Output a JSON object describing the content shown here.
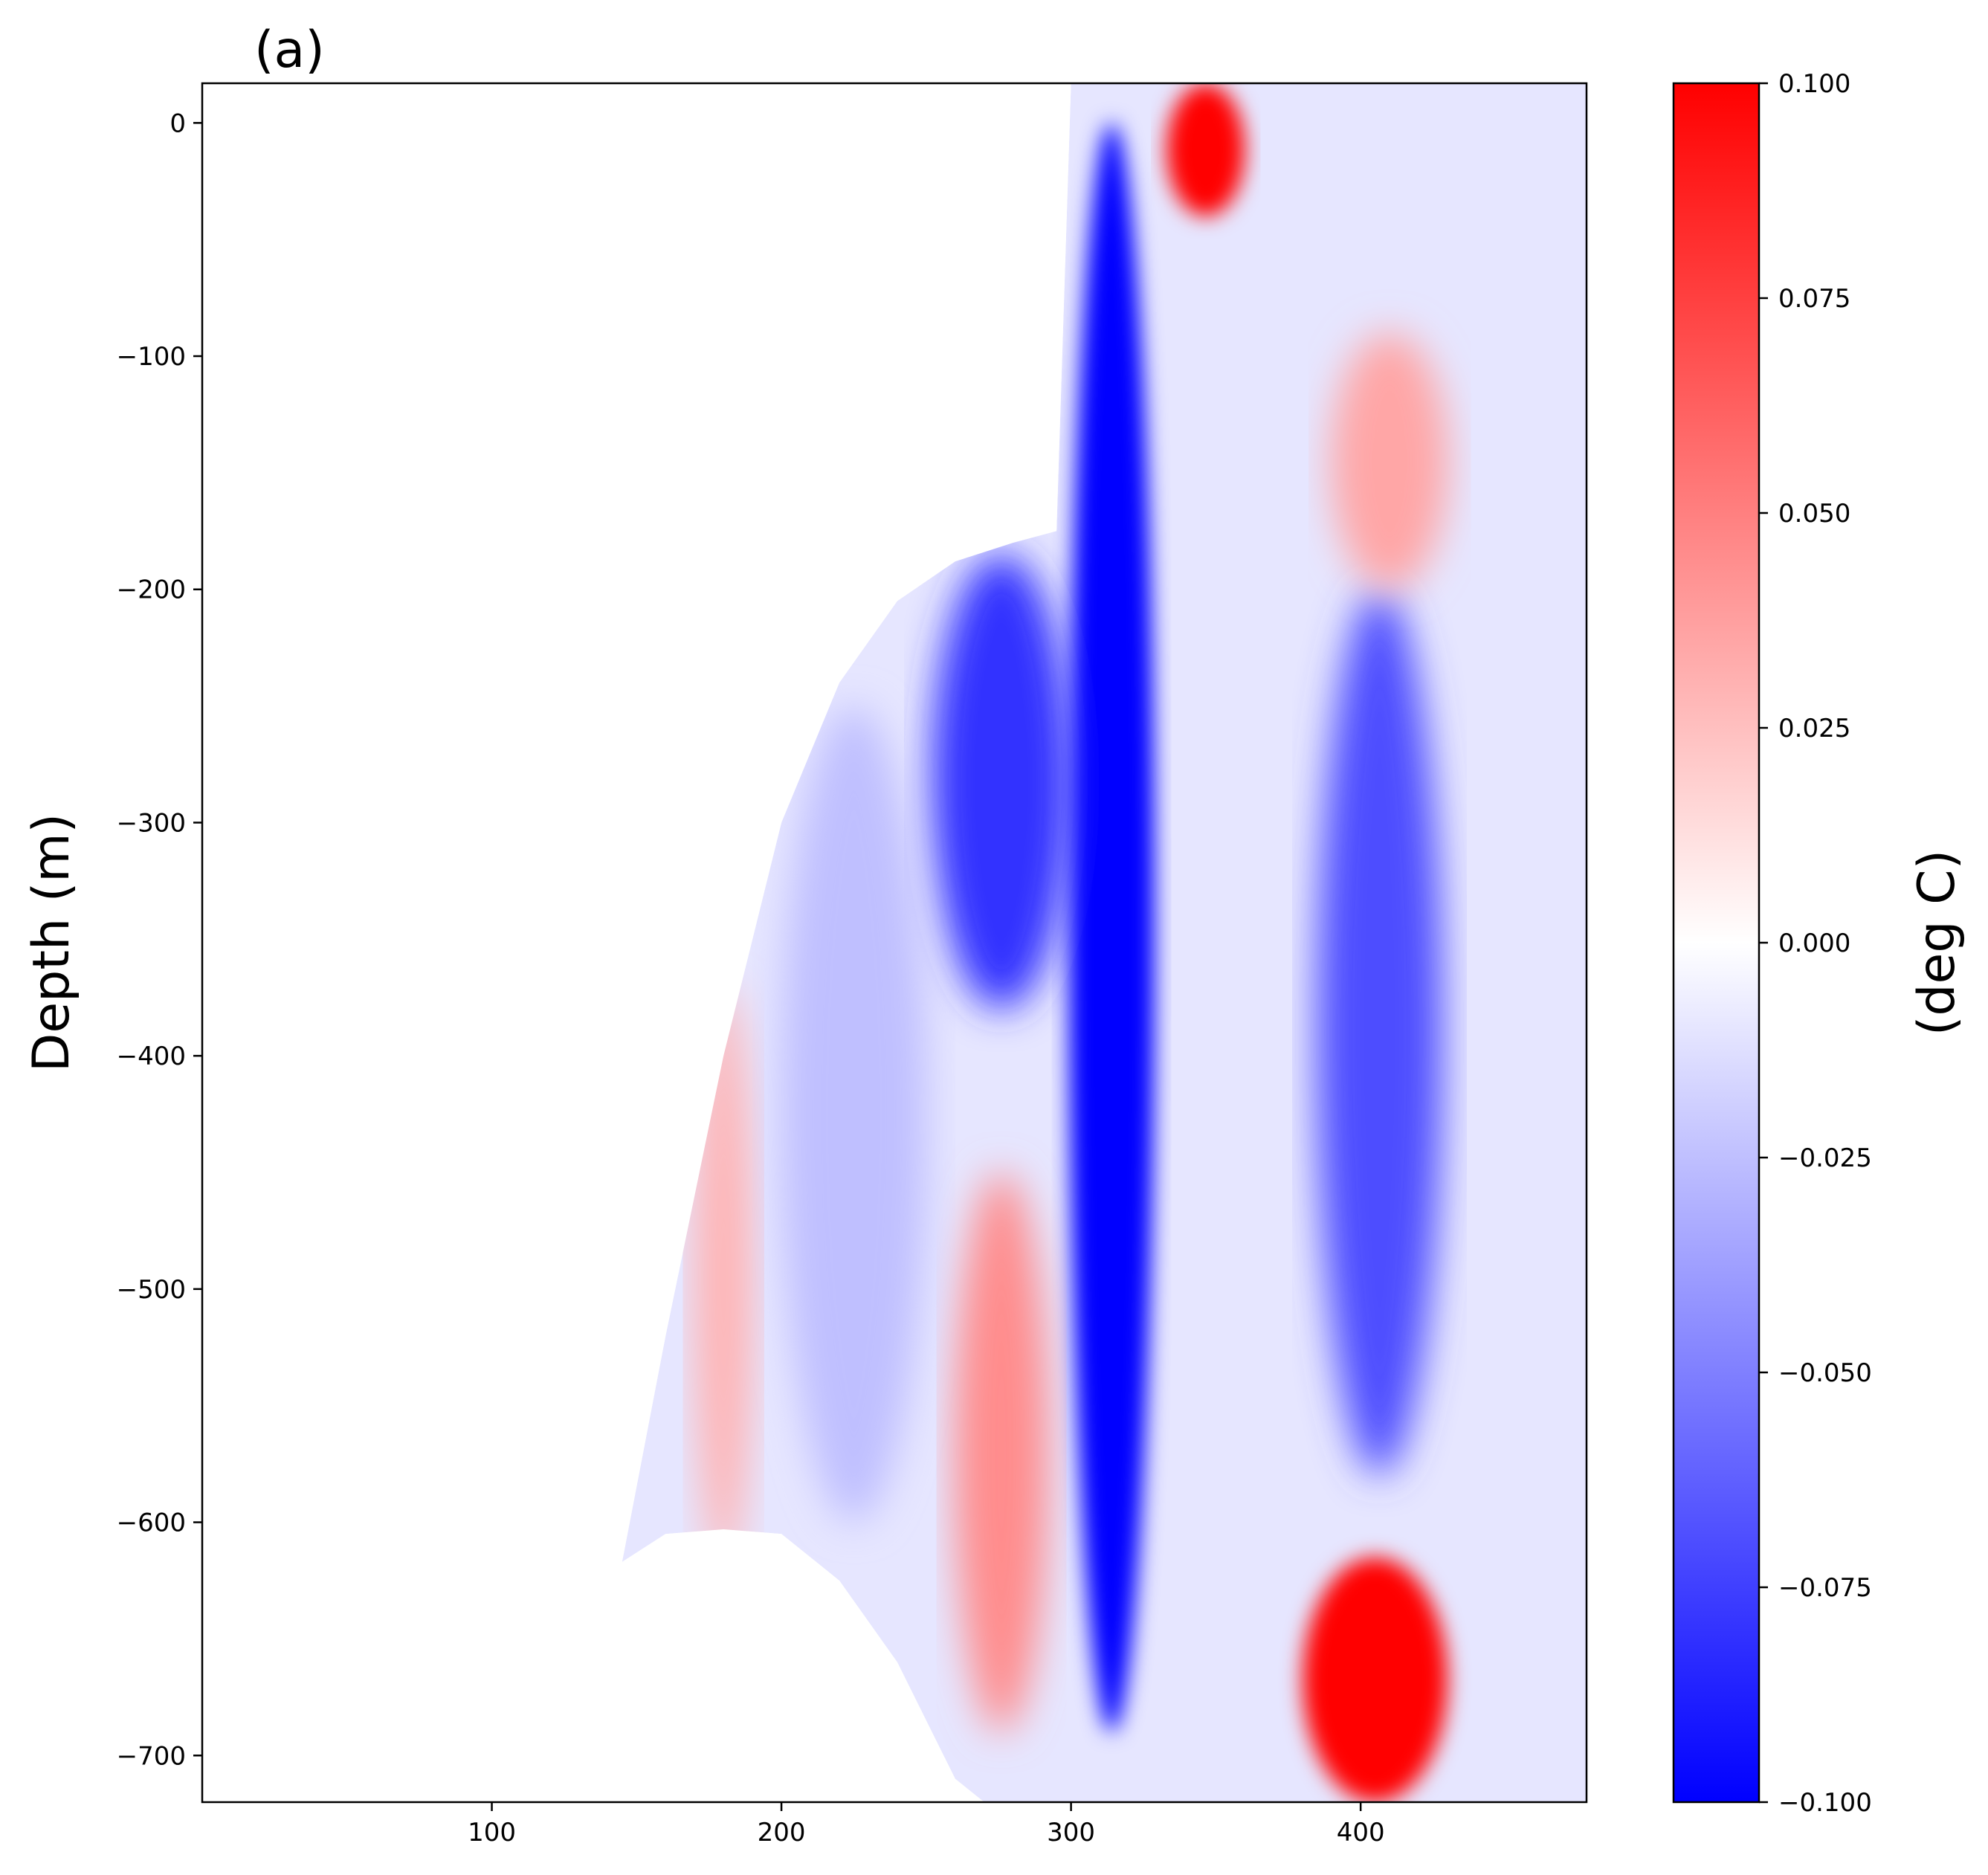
{
  "chart_data": {
    "type": "heatmap",
    "title": "(a)",
    "xlabel": "",
    "ylabel": "Depth (m)",
    "xlim": [
      0,
      478
    ],
    "ylim": [
      -720,
      17
    ],
    "x_ticks": [
      100,
      200,
      300,
      400
    ],
    "x_tick_labels": [
      "100",
      "200",
      "300",
      "400"
    ],
    "y_ticks": [
      0,
      -100,
      -200,
      -300,
      -400,
      -500,
      -600,
      -700
    ],
    "y_tick_labels": [
      "0",
      "−100",
      "−200",
      "−300",
      "−400",
      "−500",
      "−600",
      "−700"
    ],
    "colormap": "bwr",
    "colors": {
      "low": "#0000ff",
      "mid": "#ffffff",
      "high": "#ff0000"
    },
    "grid": false,
    "colorbar": {
      "label": "(deg C)",
      "range": [
        -0.1,
        0.1
      ],
      "ticks": [
        0.1,
        0.075,
        0.05,
        0.025,
        0.0,
        -0.025,
        -0.05,
        -0.075,
        -0.1
      ],
      "tick_labels": [
        "0.100",
        "0.075",
        "0.050",
        "0.025",
        "0.000",
        "−0.025",
        "−0.050",
        "−0.075",
        "−0.100"
      ]
    },
    "bathymetry_bottom": {
      "x": [
        145,
        160,
        180,
        200,
        220,
        240,
        260,
        270,
        280,
        290,
        300,
        330,
        370,
        420,
        478
      ],
      "depth": [
        -617,
        -605,
        -603,
        -605,
        -625,
        -660,
        -710,
        -720,
        -720,
        -720,
        -720,
        -720,
        -720,
        -720,
        -720
      ]
    },
    "bathymetry_top": {
      "x": [
        145,
        160,
        180,
        200,
        220,
        240,
        260,
        280,
        295,
        300,
        320,
        340,
        478
      ],
      "depth": [
        -617,
        -520,
        -400,
        -300,
        -240,
        -205,
        -188,
        -180,
        -175,
        17,
        17,
        17,
        17
      ]
    },
    "anomaly_features": [
      {
        "x": [
          300,
          328
        ],
        "depth": [
          -690,
          0
        ],
        "value": -0.1
      },
      {
        "x": [
          252,
          300
        ],
        "depth": [
          -380,
          -185
        ],
        "value": -0.08
      },
      {
        "x": [
          385,
          428
        ],
        "depth": [
          -580,
          -200
        ],
        "value": -0.07
      },
      {
        "x": [
          380,
          430
        ],
        "depth": [
          -720,
          -615
        ],
        "value": 0.1
      },
      {
        "x": [
          333,
          360
        ],
        "depth": [
          -40,
          17
        ],
        "value": 0.1
      },
      {
        "x": [
          260,
          292
        ],
        "depth": [
          -690,
          -450
        ],
        "value": 0.045
      },
      {
        "x": [
          390,
          430
        ],
        "depth": [
          -200,
          -90
        ],
        "value": 0.035
      },
      {
        "x": [
          170,
          190
        ],
        "depth": [
          -620,
          -370
        ],
        "value": 0.03
      },
      {
        "x": [
          200,
          250
        ],
        "depth": [
          -600,
          -250
        ],
        "value": -0.025
      }
    ]
  }
}
